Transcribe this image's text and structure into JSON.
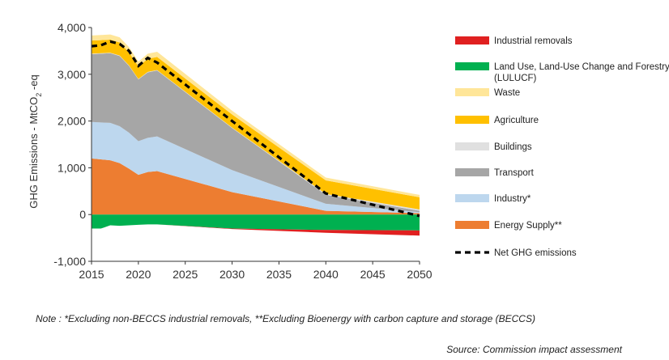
{
  "chart_data": {
    "type": "area",
    "ylabel": "GHG Emissions - MtCO2-eq",
    "ylabel_main": "GHG Emissions - MtCO",
    "ylabel_sub": "2",
    "ylabel_tail": " -eq",
    "ylim": [
      -1000,
      4000
    ],
    "xlim": [
      2015,
      2050
    ],
    "x_ticks": [
      2015,
      2020,
      2025,
      2030,
      2035,
      2040,
      2045,
      2050
    ],
    "y_ticks": [
      -1000,
      0,
      1000,
      2000,
      3000,
      4000
    ],
    "y_tick_labels": [
      "-1,000",
      "0",
      "1,000",
      "2,000",
      "3,000",
      "4,000"
    ],
    "x": [
      2015,
      2016,
      2017,
      2018,
      2019,
      2020,
      2021,
      2022,
      2030,
      2040,
      2050
    ],
    "positive_series": [
      {
        "name": "Energy Supply**",
        "color": "#ed7d31",
        "values": [
          1200,
          1180,
          1160,
          1100,
          980,
          850,
          910,
          930,
          480,
          80,
          30
        ]
      },
      {
        "name": "Industry*",
        "color": "#bdd7ee",
        "values": [
          780,
          790,
          800,
          790,
          770,
          720,
          730,
          740,
          470,
          150,
          20
        ]
      },
      {
        "name": "Transport",
        "color": "#a6a6a6",
        "values": [
          1450,
          1470,
          1490,
          1500,
          1430,
          1320,
          1400,
          1410,
          900,
          190,
          30
        ]
      },
      {
        "name": "Buildings",
        "color": "#e0e0e0",
        "values": [
          10,
          10,
          10,
          10,
          10,
          10,
          10,
          10,
          10,
          20,
          30
        ]
      },
      {
        "name": "Agriculture",
        "color": "#ffc000",
        "values": [
          280,
          280,
          280,
          280,
          280,
          270,
          280,
          280,
          280,
          290,
          260
        ]
      },
      {
        "name": "Waste",
        "color": "#ffe699",
        "values": [
          110,
          110,
          110,
          110,
          110,
          100,
          110,
          110,
          80,
          60,
          50
        ]
      }
    ],
    "negative_series": [
      {
        "name": "Land Use, Land-Use Change and Forestry (LULUCF)",
        "color": "#00b050",
        "values": [
          -300,
          -300,
          -230,
          -240,
          -230,
          -220,
          -210,
          -210,
          -300,
          -330,
          -340
        ]
      },
      {
        "name": "Industrial removals",
        "color": "#e02020",
        "values": [
          0,
          0,
          0,
          0,
          0,
          0,
          0,
          0,
          -10,
          -60,
          -110
        ]
      }
    ],
    "net": {
      "name": "Net GHG emissions",
      "x": [
        2015,
        2016,
        2017,
        2018,
        2019,
        2020,
        2021,
        2022,
        2030,
        2040,
        2050
      ],
      "values": [
        3600,
        3620,
        3700,
        3650,
        3500,
        3180,
        3350,
        3250,
        2000,
        450,
        -30
      ]
    },
    "legend": [
      {
        "name": "Industrial removals",
        "color": "#e02020",
        "kind": "box"
      },
      {
        "name": "Land Use, Land-Use Change and Forestry",
        "name2": "(LULUCF)",
        "color": "#00b050",
        "kind": "box"
      },
      {
        "name": "Waste",
        "color": "#ffe699",
        "kind": "box"
      },
      {
        "name": "Agriculture",
        "color": "#ffc000",
        "kind": "box"
      },
      {
        "name": "Buildings",
        "color": "#e0e0e0",
        "kind": "box"
      },
      {
        "name": "Transport",
        "color": "#a6a6a6",
        "kind": "box"
      },
      {
        "name": "Industry*",
        "color": "#bdd7ee",
        "kind": "box"
      },
      {
        "name": "Energy Supply**",
        "color": "#ed7d31",
        "kind": "box"
      },
      {
        "name": "Net GHG emissions",
        "color": "#000000",
        "kind": "dash"
      }
    ],
    "grid": false,
    "legend_position": "right"
  },
  "note": "Note : *Excluding non-BECCS industrial removals, **Excluding Bioenergy with carbon capture and storage (BECCS)",
  "source": "Source: Commission impact assessment"
}
